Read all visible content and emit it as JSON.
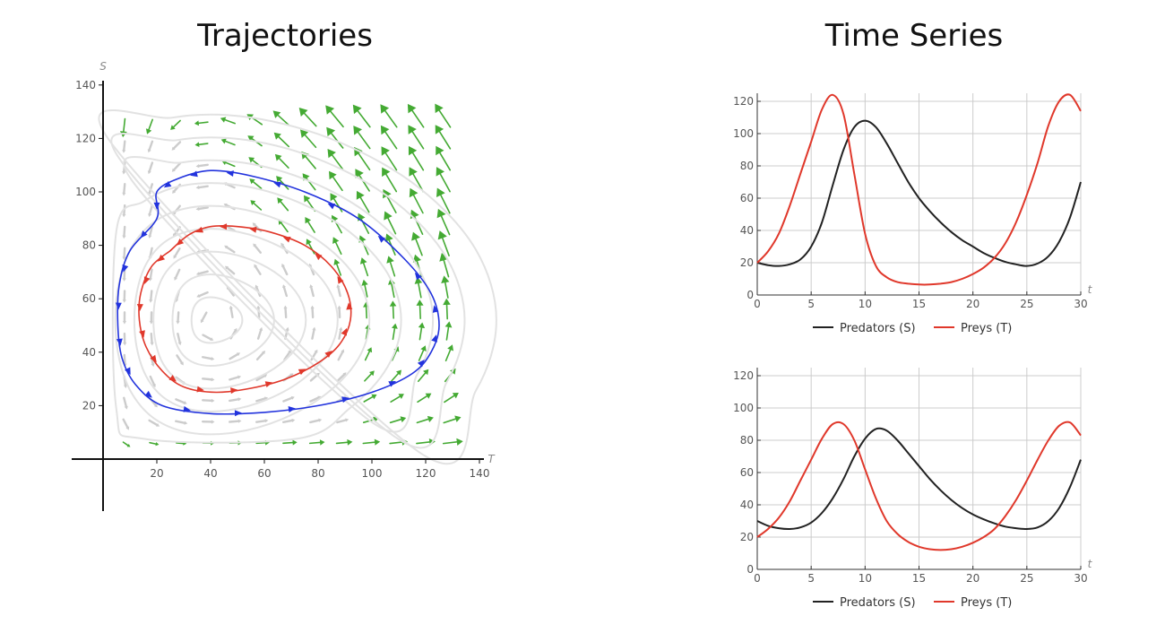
{
  "titles": {
    "left": "Trajectories",
    "right": "Time Series"
  },
  "colors": {
    "predator": "#222222",
    "prey": "#e0382b",
    "orbit_outer": "#2233dd",
    "orbit_inner": "#e0382b",
    "field": "#44aa33",
    "stream": "#cccccc",
    "grid": "#cccccc"
  },
  "chart_data": [
    {
      "type": "line",
      "kind": "phase-portrait",
      "xlabel": "T",
      "ylabel": "S",
      "xlim": [
        -10,
        140
      ],
      "ylim": [
        -8,
        140
      ],
      "x_ticks": [
        "20",
        "40",
        "60",
        "80",
        "100",
        "120",
        "140"
      ],
      "y_ticks": [
        "20",
        "40",
        "60",
        "80",
        "100",
        "120",
        "140"
      ],
      "equilibrium": [
        40,
        52
      ],
      "series": [
        {
          "id": "outer",
          "color": "#2233dd",
          "x": [
            20,
            10,
            6,
            5.5,
            7,
            12,
            22,
            40,
            60,
            80,
            100,
            115,
            122,
            125,
            122,
            112,
            95,
            75,
            55,
            40,
            28,
            20
          ],
          "y": [
            90,
            78,
            65,
            50,
            38,
            28,
            20,
            17,
            17.5,
            20,
            25,
            32,
            40,
            50,
            62,
            75,
            90,
            100,
            106,
            108,
            105,
            100
          ]
        },
        {
          "id": "inner",
          "color": "#e0382b",
          "x": [
            25,
            18,
            14,
            13.5,
            16,
            22,
            30,
            42,
            55,
            68,
            80,
            88,
            92,
            91,
            85,
            75,
            62,
            50,
            40,
            32,
            25
          ],
          "y": [
            78,
            72,
            62,
            52,
            42,
            33,
            27,
            25,
            26.5,
            30,
            36,
            43,
            52,
            62,
            72,
            80,
            85,
            87,
            87,
            84,
            78
          ]
        }
      ]
    },
    {
      "type": "line",
      "xlabel": "t",
      "xlim": [
        0,
        30
      ],
      "ylim": [
        0,
        125
      ],
      "x_ticks": [
        "0",
        "5",
        "10",
        "15",
        "20",
        "25",
        "30"
      ],
      "y_ticks": [
        "0",
        "20",
        "40",
        "60",
        "80",
        "100",
        "120"
      ],
      "series": [
        {
          "name": "Predators (S)",
          "color": "#222222",
          "x": [
            0,
            1,
            2,
            3,
            4,
            5,
            6,
            7,
            8,
            9,
            10,
            11,
            12,
            13,
            14,
            15,
            16,
            17,
            18,
            19,
            20,
            21,
            22,
            23,
            24,
            25,
            26,
            27,
            28,
            29,
            30
          ],
          "y": [
            20,
            18.5,
            18,
            19,
            22,
            30,
            45,
            68,
            90,
            104,
            108,
            104,
            94,
            82,
            70,
            60,
            52,
            45,
            39,
            34,
            30,
            26,
            23,
            20.5,
            19,
            18,
            19.5,
            24,
            33,
            48,
            70
          ]
        },
        {
          "name": "Preys (T)",
          "color": "#e0382b",
          "x": [
            0,
            1,
            2,
            3,
            4,
            5,
            6,
            7,
            8,
            9,
            10,
            11,
            12,
            13,
            14,
            15,
            16,
            17,
            18,
            19,
            20,
            21,
            22,
            23,
            24,
            25,
            26,
            27,
            28,
            29,
            30
          ],
          "y": [
            20,
            27,
            38,
            55,
            75,
            95,
            115,
            124,
            112,
            75,
            38,
            18,
            11,
            8,
            7,
            6.5,
            6.5,
            7,
            8,
            10,
            13,
            17,
            23,
            32,
            45,
            62,
            82,
            105,
            120,
            124,
            114
          ]
        }
      ]
    },
    {
      "type": "line",
      "xlabel": "t",
      "xlim": [
        0,
        30
      ],
      "ylim": [
        0,
        125
      ],
      "x_ticks": [
        "0",
        "5",
        "10",
        "15",
        "20",
        "25",
        "30"
      ],
      "y_ticks": [
        "0",
        "20",
        "40",
        "60",
        "80",
        "100",
        "120"
      ],
      "series": [
        {
          "name": "Predators (S)",
          "color": "#222222",
          "x": [
            0,
            1,
            2,
            3,
            4,
            5,
            6,
            7,
            8,
            9,
            10,
            11,
            12,
            13,
            14,
            15,
            16,
            17,
            18,
            19,
            20,
            21,
            22,
            23,
            24,
            25,
            26,
            27,
            28,
            29,
            30
          ],
          "y": [
            30,
            27,
            25.5,
            25,
            26,
            29,
            35,
            44,
            56,
            70,
            81,
            87,
            86,
            80,
            72,
            64,
            56,
            49,
            43,
            38,
            34,
            31,
            28.5,
            26.5,
            25.5,
            25,
            26,
            30,
            38,
            51,
            68
          ]
        },
        {
          "name": "Preys (T)",
          "color": "#e0382b",
          "x": [
            0,
            1,
            2,
            3,
            4,
            5,
            6,
            7,
            8,
            9,
            10,
            11,
            12,
            13,
            14,
            15,
            16,
            17,
            18,
            19,
            20,
            21,
            22,
            23,
            24,
            25,
            26,
            27,
            28,
            29,
            30
          ],
          "y": [
            20,
            25,
            32,
            42,
            55,
            68,
            81,
            90,
            90,
            80,
            62,
            44,
            30,
            22,
            17,
            14,
            12.5,
            12,
            12.5,
            14,
            16.5,
            20,
            25,
            33,
            43,
            55,
            68,
            80,
            89,
            91,
            83
          ]
        }
      ]
    }
  ]
}
